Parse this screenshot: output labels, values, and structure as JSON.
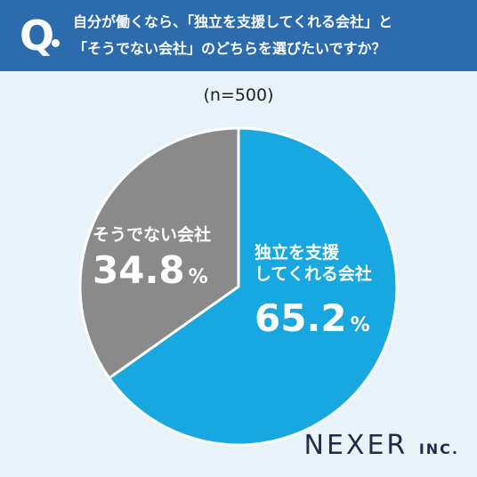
{
  "question": {
    "mark": "Q",
    "line1": "自分が働くなら、「独立を支援してくれる会社」と",
    "line2": "「そうでない会社」のどちらを選びたいですか？"
  },
  "sample_note": "(n=500)",
  "brand": {
    "name": "NEXER",
    "suffix": "INC."
  },
  "colors": {
    "header": "#2c6bad",
    "background": "#e8f2f9",
    "slice_support": "#18a7df",
    "slice_other": "#8a8a8a",
    "brand_text": "#262a4a"
  },
  "chart_data": {
    "type": "pie",
    "title": "",
    "slices": [
      {
        "label_lines": [
          "独立を支援",
          "してくれる会社"
        ],
        "value": 65.2,
        "display": "65.2",
        "unit": "%"
      },
      {
        "label_lines": [
          "そうでない会社"
        ],
        "value": 34.8,
        "display": "34.8",
        "unit": "%"
      }
    ]
  }
}
